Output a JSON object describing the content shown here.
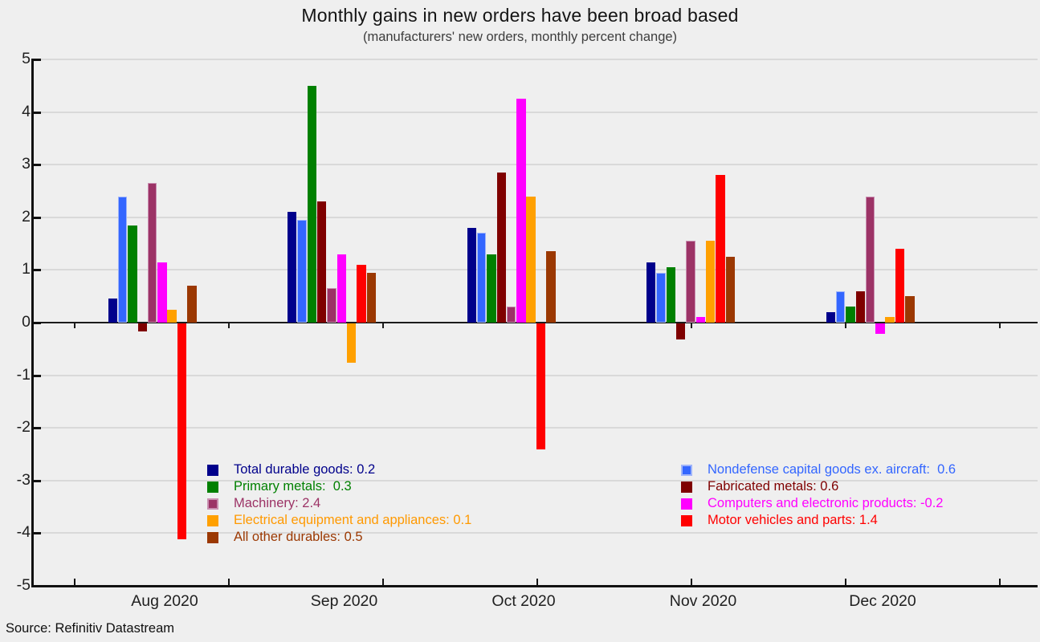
{
  "title": "Monthly gains in new orders have been broad based",
  "subtitle": "(manufacturers' new orders, monthly percent change)",
  "source": "Source: Refinitiv Datastream",
  "colors": {
    "background": "#efefef",
    "gridline": "#d9d9d9",
    "axis": "#111111"
  },
  "chart_data": {
    "type": "bar",
    "title": "Monthly gains in new orders have been broad based",
    "subtitle": "(manufacturers' new orders, monthly percent change)",
    "categories": [
      "Aug 2020",
      "Sep 2020",
      "Oct 2020",
      "Nov 2020",
      "Dec 2020"
    ],
    "ylim": [
      -5,
      5
    ],
    "yticks": [
      5,
      4,
      3,
      2,
      1,
      0,
      -1,
      -2,
      -3,
      -4,
      -5
    ],
    "grid": true,
    "legend_position": "inside-bottom, two columns",
    "series": [
      {
        "name": "Total durable goods",
        "color": "#00008b",
        "edge": "#00008b",
        "values": [
          0.45,
          2.1,
          1.8,
          1.15,
          0.2
        ],
        "legend_label": "Total durable goods: 0.2",
        "legend_col": 0
      },
      {
        "name": "Nondefense capital goods ex. aircraft",
        "color": "#3366ff",
        "edge": "#9fb4fa",
        "values": [
          2.4,
          1.95,
          1.7,
          0.95,
          0.6
        ],
        "legend_label": "Nondefense capital goods ex. aircraft:  0.6",
        "legend_col": 1
      },
      {
        "name": "Primary metals",
        "color": "#008000",
        "edge": "#008000",
        "values": [
          1.85,
          4.5,
          1.3,
          1.05,
          0.3
        ],
        "legend_label": "Primary metals:  0.3",
        "legend_col": 0
      },
      {
        "name": "Fabricated metals",
        "color": "#7f0000",
        "edge": "#7f0000",
        "values": [
          -0.15,
          2.3,
          2.85,
          -0.3,
          0.6
        ],
        "legend_label": "Fabricated metals: 0.6",
        "legend_col": 1
      },
      {
        "name": "Machinery",
        "color": "#9c3366",
        "edge": "#c98fb1",
        "values": [
          2.65,
          0.65,
          0.3,
          1.55,
          2.4
        ],
        "legend_label": "Machinery: 2.4",
        "legend_col": 0
      },
      {
        "name": "Computers and electronic products",
        "color": "#ff00ff",
        "edge": "#ff00ff",
        "values": [
          1.15,
          1.3,
          4.25,
          0.1,
          -0.2
        ],
        "legend_label": "Computers and electronic products: -0.2",
        "legend_col": 1
      },
      {
        "name": "Electrical equipment and appliances",
        "color": "#ffa000",
        "edge": "#ffa000",
        "values": [
          0.25,
          -0.75,
          2.4,
          1.55,
          0.1
        ],
        "legend_label": "Electrical equipment and appliances: 0.1",
        "legend_col": 0
      },
      {
        "name": "Motor vehicles and parts",
        "color": "#ff0000",
        "edge": "#ff0000",
        "values": [
          -4.1,
          1.1,
          -2.4,
          2.8,
          1.4
        ],
        "legend_label": "Motor vehicles and parts: 1.4",
        "legend_col": 1
      },
      {
        "name": "All other durables",
        "color": "#9b3802",
        "edge": "#9b3802",
        "values": [
          0.7,
          0.95,
          1.35,
          1.25,
          0.5
        ],
        "legend_label": "All other durables: 0.5",
        "legend_col": 0
      }
    ]
  }
}
